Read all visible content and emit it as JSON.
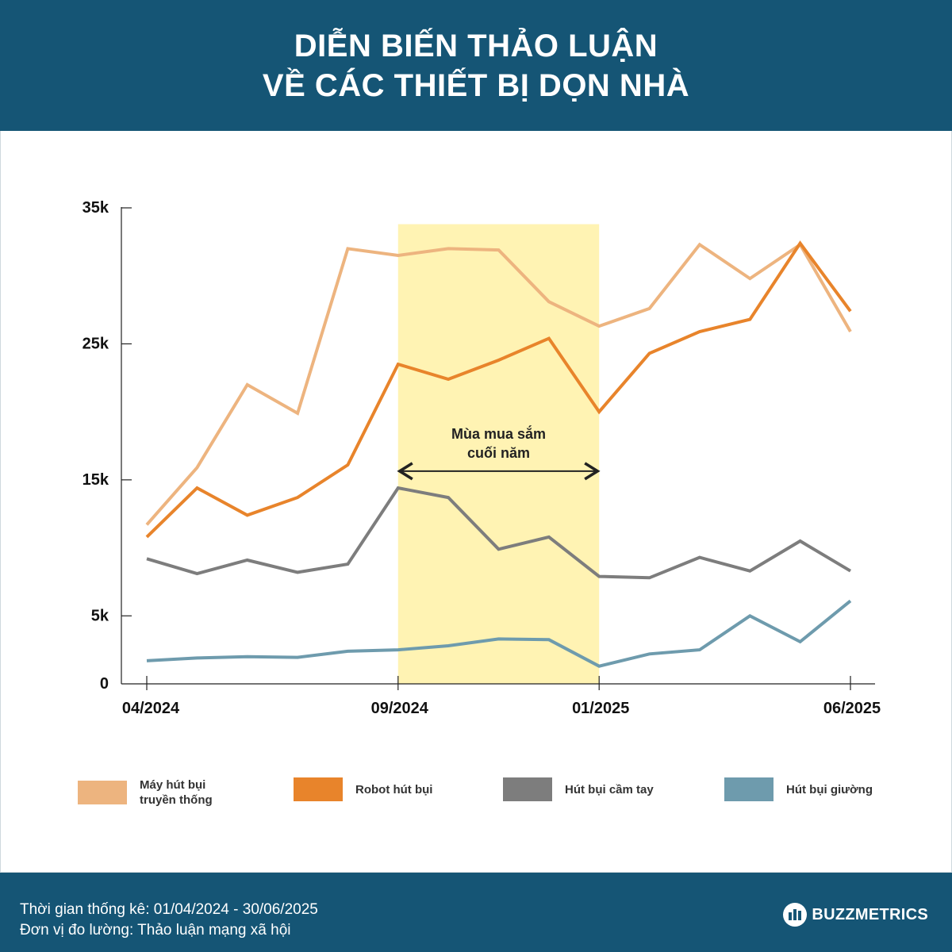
{
  "header": {
    "title_line1": "DIỄN BIẾN THẢO LUẬN",
    "title_line2": "VỀ CÁC THIẾT BỊ DỌN NHÀ"
  },
  "chart_data": {
    "type": "line",
    "x": [
      "04/2024",
      "05/2024",
      "06/2024",
      "07/2024",
      "08/2024",
      "09/2024",
      "10/2024",
      "11/2024",
      "12/2024",
      "01/2025",
      "02/2025",
      "03/2025",
      "04/2025",
      "05/2025",
      "06/2025"
    ],
    "x_tick_labels": [
      "04/2024",
      "09/2024",
      "01/2025",
      "06/2025"
    ],
    "y_ticks": [
      "0",
      "5k",
      "15k",
      "25k",
      "35k"
    ],
    "y_tick_values": [
      0,
      5000,
      15000,
      25000,
      35000
    ],
    "ylim": [
      0,
      35000
    ],
    "series": [
      {
        "name": "Máy hút bụi truyền thống",
        "color": "#EDB47F",
        "values": [
          11700,
          15900,
          22000,
          19900,
          32000,
          31500,
          32000,
          31900,
          28100,
          26300,
          27600,
          32300,
          29800,
          32300,
          25900
        ]
      },
      {
        "name": "Robot hút bụi",
        "color": "#E8842B",
        "values": [
          10800,
          14400,
          12400,
          13700,
          16100,
          23500,
          22400,
          23800,
          25400,
          20000,
          24300,
          25900,
          26800,
          32400,
          27400
        ]
      },
      {
        "name": "Hút bụi cầm tay",
        "color": "#7D7D7D",
        "values": [
          9200,
          8100,
          9100,
          8200,
          8800,
          14400,
          13700,
          9900,
          10800,
          7900,
          7800,
          9300,
          8300,
          10500,
          8300
        ]
      },
      {
        "name": "Hút bụi giường",
        "color": "#6E9BAD",
        "values": [
          1700,
          1900,
          2000,
          1950,
          2400,
          2500,
          2800,
          3300,
          3250,
          1300,
          2200,
          2500,
          5000,
          3100,
          6100
        ]
      }
    ],
    "highlight": {
      "from": "09/2024",
      "to": "01/2025",
      "label_line1": "Mùa mua sắm",
      "label_line2": "cuối năm",
      "color": "#FFF3B3"
    }
  },
  "legend": [
    {
      "label": "Máy hút bụi truyền thống",
      "color": "#EDB47F"
    },
    {
      "label": "Robot hút bụi",
      "color": "#E8842B"
    },
    {
      "label": "Hút bụi cầm tay",
      "color": "#7D7D7D"
    },
    {
      "label": "Hút bụi giường",
      "color": "#6E9BAD"
    }
  ],
  "footer": {
    "period": "Thời gian thống kê: 01/04/2024 - 30/06/2025",
    "unit": "Đơn vị đo lường: Thảo luận mạng xã hội",
    "brand": "BUZZMETRICS"
  }
}
